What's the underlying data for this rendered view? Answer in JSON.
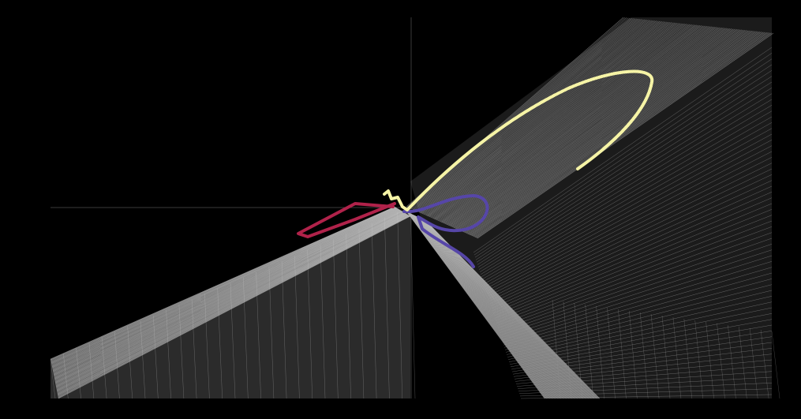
{
  "scene": {
    "background_color": "#000000",
    "mesh_color": "#d8d8d8",
    "mesh_fill_color": "#7a7a7a",
    "axis_line_color": "#3a3a3a",
    "trajectories": [
      {
        "id": "yellow",
        "color": "#f6f4a6"
      },
      {
        "id": "red",
        "color": "#b0224a"
      },
      {
        "id": "blue",
        "color": "#5646a8"
      }
    ]
  }
}
